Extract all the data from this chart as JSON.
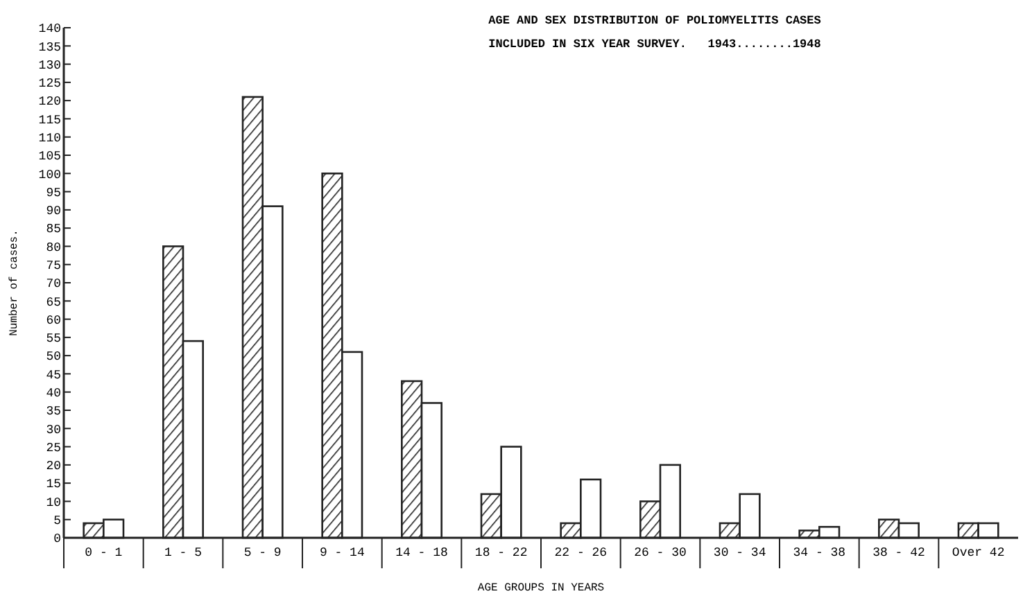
{
  "chart_data": {
    "type": "bar",
    "title": "AGE AND SEX DISTRIBUTION OF POLIOMYELITIS CASES",
    "subtitle": "INCLUDED IN SIX YEAR SURVEY.   1943........1948",
    "xlabel": "AGE GROUPS IN YEARS",
    "ylabel": "Number of cases.",
    "categories": [
      "0 - 1",
      "1 - 5",
      "5 - 9",
      "9 - 14",
      "14 - 18",
      "18 - 22",
      "22 - 26",
      "26 - 30",
      "30 - 34",
      "34 - 38",
      "38 - 42",
      "Over 42"
    ],
    "series": [
      {
        "color": "#222222",
        "values": [
          4,
          80,
          121,
          100,
          43,
          12,
          4,
          10,
          4,
          2,
          5,
          4
        ]
      },
      {
        "color": "#ffffff",
        "values": [
          5,
          54,
          91,
          51,
          37,
          25,
          16,
          20,
          12,
          3,
          4,
          4
        ]
      }
    ],
    "ylim": [
      0,
      140
    ],
    "yticks": [
      0,
      5,
      10,
      15,
      20,
      25,
      30,
      35,
      40,
      45,
      50,
      55,
      60,
      65,
      70,
      75,
      80,
      85,
      90,
      95,
      100,
      105,
      110,
      115,
      120,
      125,
      130,
      135,
      140
    ],
    "grid": false
  }
}
